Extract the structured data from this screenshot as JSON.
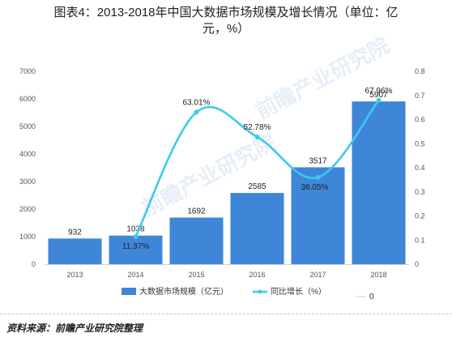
{
  "header": {
    "title_line1": "图表4：2013-2018年中国大数据市场规模及增长情况（单位：亿",
    "title_line2": "元，%）"
  },
  "chart_data": {
    "type": "bar",
    "categories": [
      "2013",
      "2014",
      "2015",
      "2016",
      "2017",
      "2018"
    ],
    "series": [
      {
        "name": "大数据市场规模（亿元）",
        "type": "bar",
        "axis": "left",
        "values": [
          932,
          1038,
          1692,
          2585,
          3517,
          5907
        ],
        "labels": [
          "932",
          "1038",
          "1692",
          "2585",
          "3517",
          "5907"
        ],
        "color": "#3f86d8"
      },
      {
        "name": "同比增长（%）",
        "type": "line",
        "axis": "right",
        "values": [
          null,
          0.1137,
          0.6301,
          0.5278,
          0.3605,
          0.6796
        ],
        "labels": [
          "",
          "11.37%",
          "63.01%",
          "52.78%",
          "36.05%",
          "67.96%"
        ],
        "color": "#3cc9ef"
      },
      {
        "name": "0",
        "type": "legend-only",
        "color": "#dddddd"
      }
    ],
    "y_left": {
      "ylim": [
        0,
        7000
      ],
      "ticks": [
        "0",
        "1000",
        "2000",
        "3000",
        "4000",
        "5000",
        "6000",
        "7000"
      ]
    },
    "y_right": {
      "ylim": [
        0,
        0.8
      ],
      "ticks": [
        "0",
        "0.1",
        "0.2",
        "0.3",
        "0.4",
        "0.5",
        "0.6",
        "0.7",
        "0.8"
      ]
    },
    "grid": false,
    "legend_position": "bottom"
  },
  "watermark": {
    "text": "前瞻产业研究院"
  },
  "footer": {
    "source": "资料来源：前瞻产业研究院整理"
  }
}
